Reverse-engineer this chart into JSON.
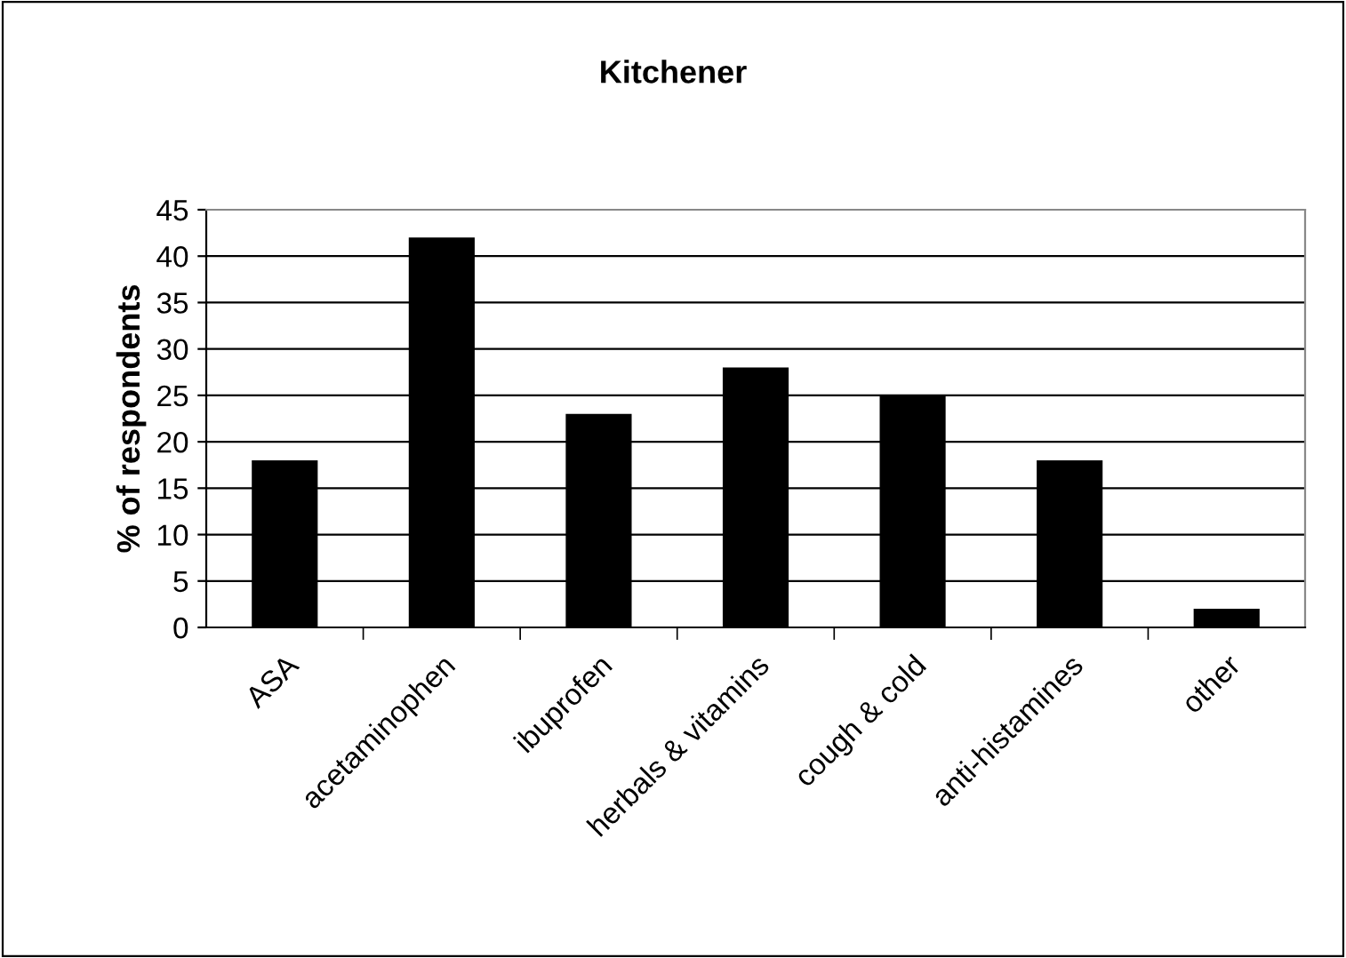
{
  "chart_data": {
    "type": "bar",
    "title": "Kitchener",
    "ylabel": "% of respondents",
    "categories": [
      "ASA",
      "acetaminophen",
      "ibuprofen",
      "herbals & vitamins",
      "cough & cold",
      "anti-histamines",
      "other"
    ],
    "values": [
      18,
      42,
      23,
      28,
      25,
      18,
      2
    ],
    "color": "#000000",
    "ylim": [
      0,
      45
    ],
    "yticks": [
      0,
      5,
      10,
      15,
      20,
      25,
      30,
      35,
      40,
      45
    ],
    "grid": "y",
    "legend": false
  }
}
